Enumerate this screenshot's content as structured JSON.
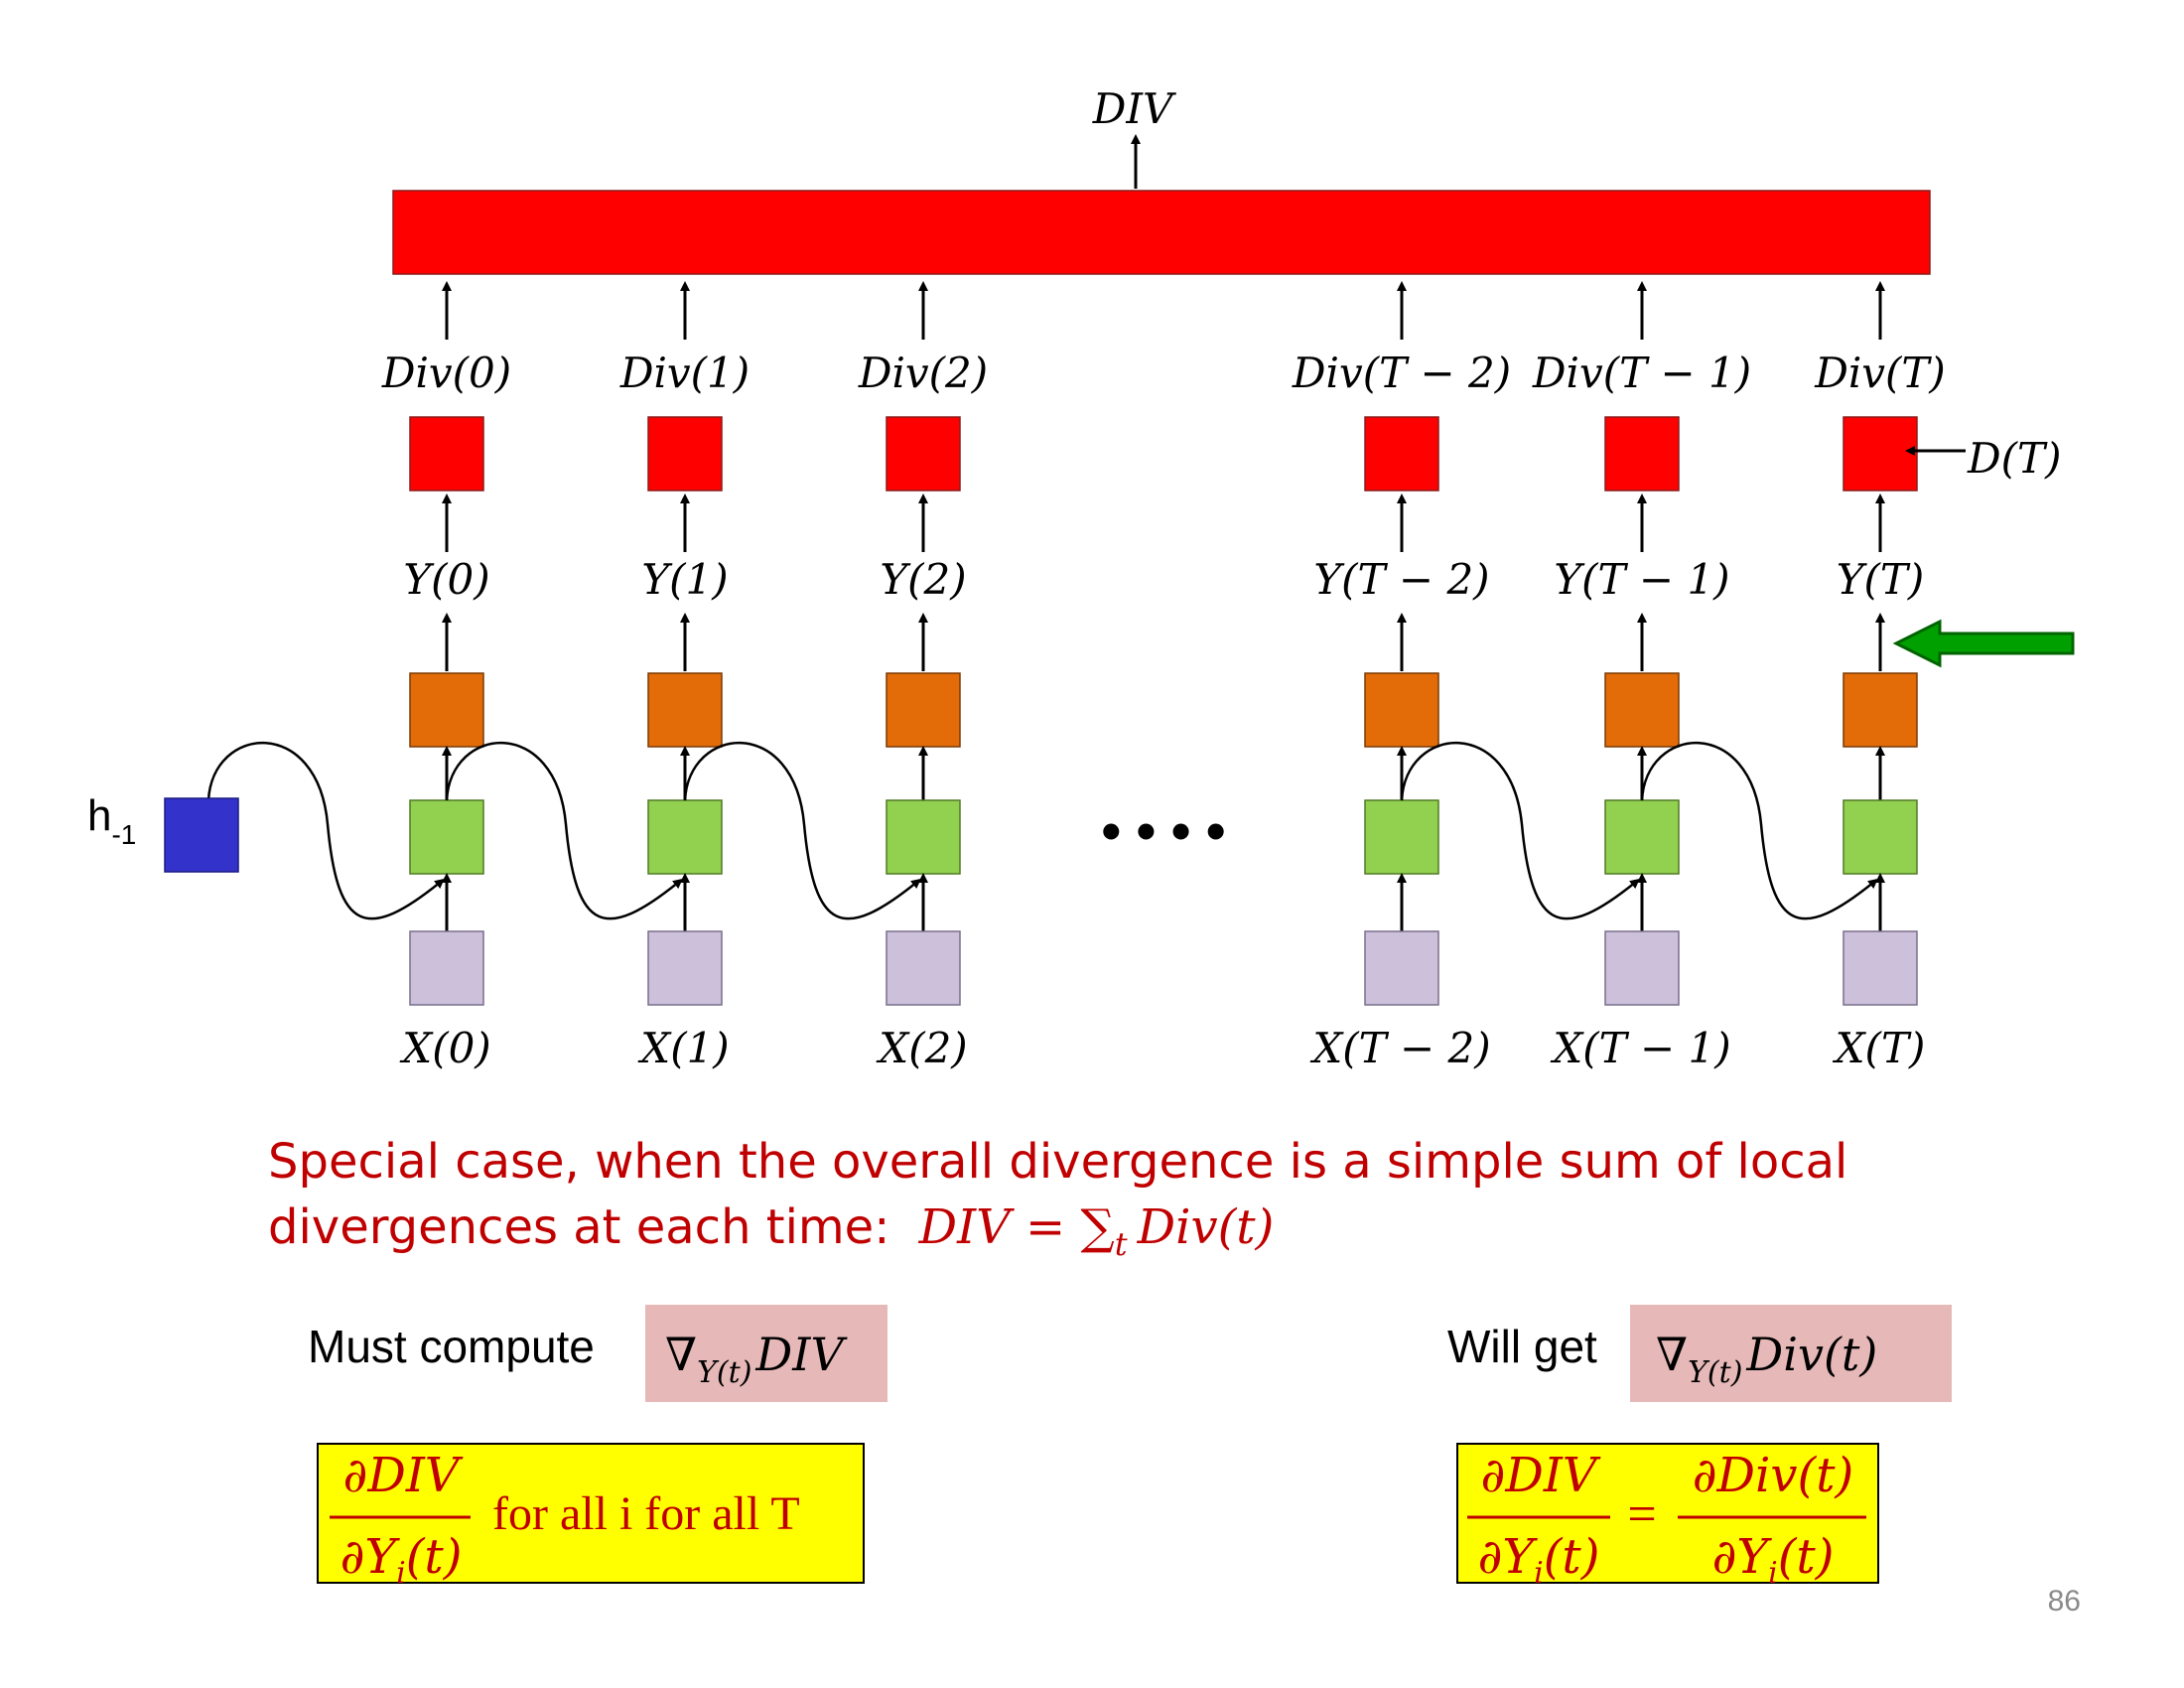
{
  "diagram": {
    "top_label": "DIV",
    "hidden_initial_label": "h",
    "hidden_initial_sub": "-1",
    "ellipsis": "• • • •",
    "desired_output_label": "D(T)",
    "columns": [
      {
        "div": "Div(0)",
        "y": "Y(0)",
        "x": "X(0)"
      },
      {
        "div": "Div(1)",
        "y": "Y(1)",
        "x": "X(1)"
      },
      {
        "div": "Div(2)",
        "y": "Y(2)",
        "x": "X(2)"
      },
      {
        "div": "Div(T − 2)",
        "y": "Y(T − 2)",
        "x": "X(T − 2)"
      },
      {
        "div": "Div(T − 1)",
        "y": "Y(T − 1)",
        "x": "X(T − 1)"
      },
      {
        "div": "Div(T)",
        "y": "Y(T)",
        "x": "X(T)"
      }
    ],
    "colors": {
      "divergence_block": "#ff0000",
      "output_block": "#e36c09",
      "hidden_block": "#92d050",
      "input_block": "#ccc0da",
      "initial_hidden_block": "#3333cc",
      "pointer_arrow": "#00a000"
    }
  },
  "caption": {
    "line1": "Special case, when the overall divergence is a simple sum of local",
    "line2": "divergences at each time:",
    "formula": "DIV = ∑",
    "formula_sub": "t",
    "formula_tail": "Div(t)",
    "color": "#c00000"
  },
  "left_box": {
    "label": "Must compute",
    "nabla": "∇",
    "nabla_sub": "Y(t)",
    "nabla_target": "DIV",
    "frac_num": "∂DIV",
    "frac_den": "∂Y",
    "frac_den_sub": "i",
    "frac_den_tail": "(t)",
    "suffix": "for all i for all T"
  },
  "right_box": {
    "label": "Will get",
    "nabla": "∇",
    "nabla_sub": "Y(t)",
    "nabla_target": "Div(t)",
    "lhs_num": "∂DIV",
    "lhs_den": "∂Y",
    "lhs_den_sub": "i",
    "lhs_den_tail": "(t)",
    "equals": "=",
    "rhs_num": "∂Div(t)",
    "rhs_den": "∂Y",
    "rhs_den_sub": "i",
    "rhs_den_tail": "(t)"
  },
  "page_number": "86"
}
